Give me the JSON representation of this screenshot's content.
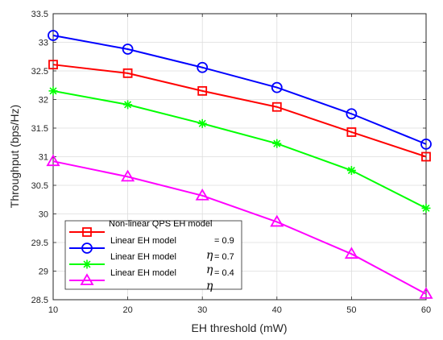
{
  "chart_data": {
    "type": "line",
    "title": "",
    "xlabel": "EH threshold (mW)",
    "ylabel": "Throughput (bps/Hz)",
    "x": [
      10,
      20,
      30,
      40,
      50,
      60
    ],
    "xlim": [
      10,
      60
    ],
    "ylim": [
      28.5,
      33.5
    ],
    "xticks": [
      "10",
      "20",
      "30",
      "40",
      "50",
      "60"
    ],
    "yticks": [
      "28.5",
      "29",
      "29.5",
      "30",
      "30.5",
      "31",
      "31.5",
      "32",
      "32.5",
      "33",
      "33.5"
    ],
    "grid": true,
    "legend_position": "bottom-left",
    "series": [
      {
        "name": "Non-linear QPS EH model",
        "color": "#ff0000",
        "marker": "square",
        "values": [
          32.61,
          32.46,
          32.15,
          31.87,
          31.43,
          31.0
        ]
      },
      {
        "name": "Linear EH model",
        "color": "#0000ff",
        "marker": "circle",
        "values": [
          33.12,
          32.88,
          32.56,
          32.21,
          31.75,
          31.22
        ]
      },
      {
        "name": "Linear EH model",
        "color": "#00ff00",
        "marker": "asterisk",
        "values": [
          32.15,
          31.91,
          31.58,
          31.23,
          30.76,
          30.1
        ]
      },
      {
        "name": "",
        "color": "#ff00ff",
        "marker": "triangle",
        "values": [
          30.92,
          30.65,
          30.32,
          29.86,
          29.3,
          28.6
        ]
      }
    ],
    "legend_extra": {
      "linear_09_label": "Linear EH model",
      "eta_values": [
        "= 0.9",
        "= 0.7",
        "= 0.4"
      ],
      "eta_symbol": "η"
    }
  }
}
